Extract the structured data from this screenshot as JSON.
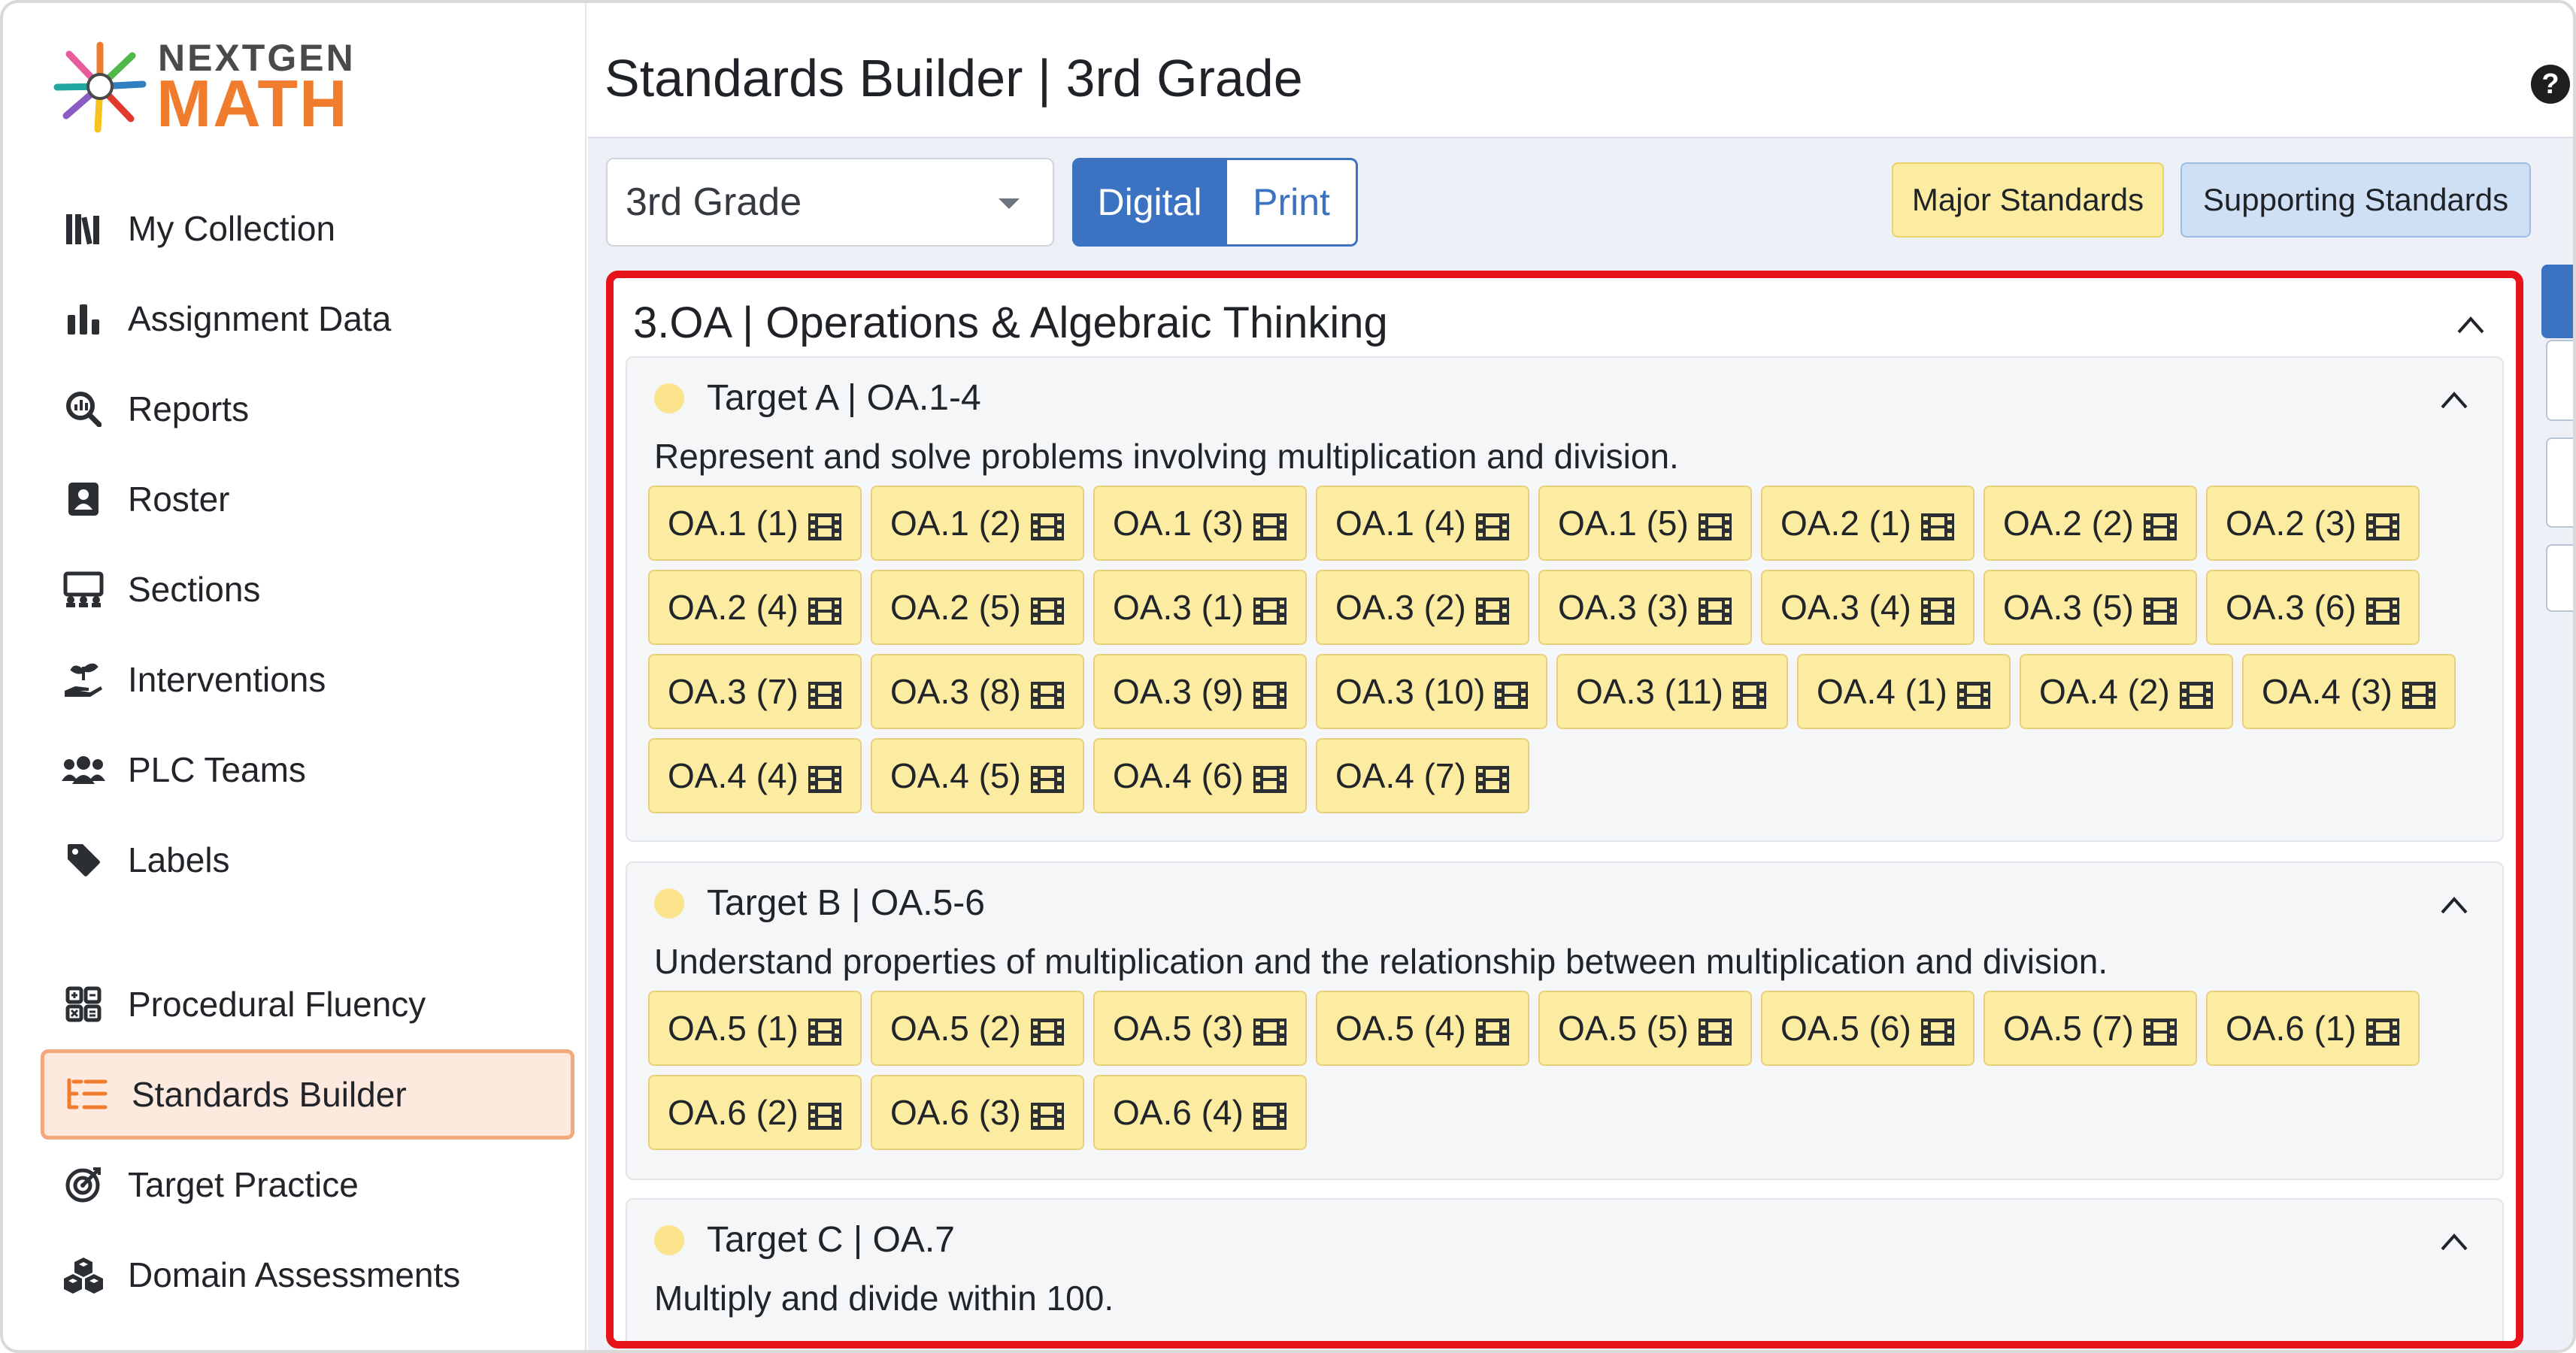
{
  "brand": {
    "logo_top": "NEXTGEN",
    "logo_bottom": "MATH",
    "colors": {
      "orange": "#f07d2e",
      "gray": "#4a4a4a"
    }
  },
  "sidebar": {
    "items": [
      {
        "label": "My Collection",
        "icon": "books-icon"
      },
      {
        "label": "Assignment Data",
        "icon": "bar-chart-icon"
      },
      {
        "label": "Reports",
        "icon": "search-chart-icon"
      },
      {
        "label": "Roster",
        "icon": "roster-icon"
      },
      {
        "label": "Sections",
        "icon": "classroom-icon"
      },
      {
        "label": "Interventions",
        "icon": "hand-sprout-icon"
      },
      {
        "label": "PLC Teams",
        "icon": "users-icon"
      },
      {
        "label": "Labels",
        "icon": "tag-icon"
      },
      {
        "label": "Procedural Fluency",
        "icon": "calculator-icon"
      },
      {
        "label": "Standards Builder",
        "icon": "list-icon",
        "active": true
      },
      {
        "label": "Target Practice",
        "icon": "target-icon"
      },
      {
        "label": "Domain Assessments",
        "icon": "cubes-icon"
      }
    ]
  },
  "header": {
    "title": "Standards Builder | 3rd Grade",
    "help": "?"
  },
  "toolbar": {
    "grade_value": "3rd Grade",
    "mode_digital": "Digital",
    "mode_print": "Print",
    "major_label": "Major Standards",
    "supporting_label": "Supporting Standards",
    "colors": {
      "primary": "#3b73c2",
      "major": "#fbeca2",
      "supporting": "#cfe0f5",
      "highlight": "#e8131a"
    }
  },
  "domain": {
    "title": "3.OA | Operations & Algebraic Thinking",
    "targets": [
      {
        "title": "Target A | OA.1-4",
        "description": "Represent and solve problems involving multiplication and division.",
        "chips": [
          "OA.1 (1)",
          "OA.1 (2)",
          "OA.1 (3)",
          "OA.1 (4)",
          "OA.1 (5)",
          "OA.2 (1)",
          "OA.2 (2)",
          "OA.2 (3)",
          "OA.2 (4)",
          "OA.2 (5)",
          "OA.3 (1)",
          "OA.3 (2)",
          "OA.3 (3)",
          "OA.3 (4)",
          "OA.3 (5)",
          "OA.3 (6)",
          "OA.3 (7)",
          "OA.3 (8)",
          "OA.3 (9)",
          "OA.3 (10)",
          "OA.3 (11)",
          "OA.4 (1)",
          "OA.4 (2)",
          "OA.4 (3)",
          "OA.4 (4)",
          "OA.4 (5)",
          "OA.4 (6)",
          "OA.4 (7)"
        ]
      },
      {
        "title": "Target B | OA.5-6",
        "description": "Understand properties of multiplication and the relationship between multiplication and division.",
        "chips": [
          "OA.5 (1)",
          "OA.5 (2)",
          "OA.5 (3)",
          "OA.5 (4)",
          "OA.5 (5)",
          "OA.5 (6)",
          "OA.5 (7)",
          "OA.6 (1)",
          "OA.6 (2)",
          "OA.6 (3)",
          "OA.6 (4)"
        ]
      },
      {
        "title": "Target C | OA.7",
        "description": "Multiply and divide within 100.",
        "chips": []
      }
    ]
  }
}
